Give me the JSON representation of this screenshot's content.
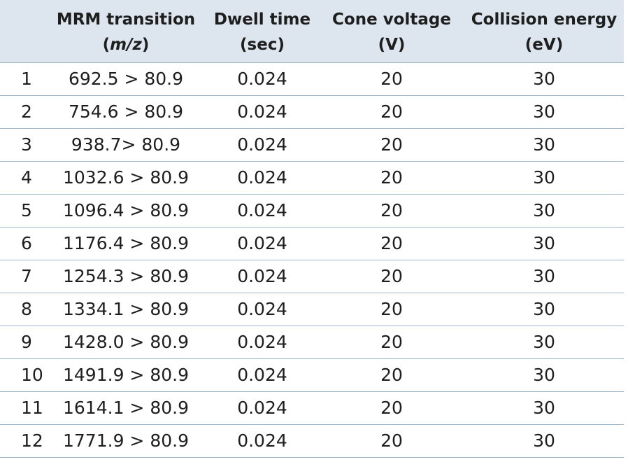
{
  "table": {
    "headers": {
      "mrm_line1": "MRM transition",
      "mrm_line2_open": "(",
      "mrm_line2_unit": "m/z",
      "mrm_line2_close": ")",
      "dwell_line1": "Dwell time",
      "dwell_line2": "(sec)",
      "cone_line1": "Cone voltage",
      "cone_line2": "(V)",
      "coll_line1": "Collision energy",
      "coll_line2": "(eV)"
    },
    "rows": [
      {
        "idx": "1",
        "mrm": "692.5 > 80.9",
        "dwell": "0.024",
        "cone": "20",
        "coll": "30"
      },
      {
        "idx": "2",
        "mrm": "754.6 > 80.9",
        "dwell": "0.024",
        "cone": "20",
        "coll": "30"
      },
      {
        "idx": "3",
        "mrm": "938.7> 80.9",
        "dwell": "0.024",
        "cone": "20",
        "coll": "30"
      },
      {
        "idx": "4",
        "mrm": "1032.6 > 80.9",
        "dwell": "0.024",
        "cone": "20",
        "coll": "30"
      },
      {
        "idx": "5",
        "mrm": "1096.4 > 80.9",
        "dwell": "0.024",
        "cone": "20",
        "coll": "30"
      },
      {
        "idx": "6",
        "mrm": "1176.4 > 80.9",
        "dwell": "0.024",
        "cone": "20",
        "coll": "30"
      },
      {
        "idx": "7",
        "mrm": "1254.3 > 80.9",
        "dwell": "0.024",
        "cone": "20",
        "coll": "30"
      },
      {
        "idx": "8",
        "mrm": "1334.1 > 80.9",
        "dwell": "0.024",
        "cone": "20",
        "coll": "30"
      },
      {
        "idx": "9",
        "mrm": "1428.0 > 80.9",
        "dwell": "0.024",
        "cone": "20",
        "coll": "30"
      },
      {
        "idx": "10",
        "mrm": "1491.9 > 80.9",
        "dwell": "0.024",
        "cone": "20",
        "coll": "30"
      },
      {
        "idx": "11",
        "mrm": "1614.1 > 80.9",
        "dwell": "0.024",
        "cone": "20",
        "coll": "30"
      },
      {
        "idx": "12",
        "mrm": "1771.9 > 80.9",
        "dwell": "0.024",
        "cone": "20",
        "coll": "30"
      }
    ]
  }
}
